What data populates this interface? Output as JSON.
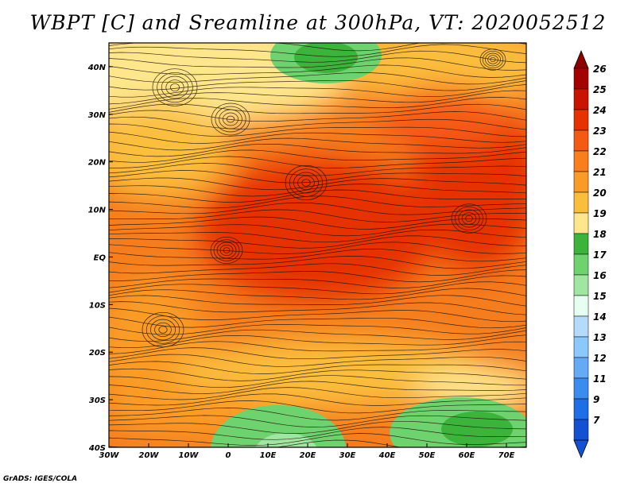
{
  "title": "WBPT [C] and Sreamline at 300hPa, VT: 2020052512",
  "credit": "GrADS: IGES/COLA",
  "map": {
    "lon_labels": [
      "30W",
      "20W",
      "10W",
      "0",
      "10E",
      "20E",
      "30E",
      "40E",
      "50E",
      "60E",
      "70E"
    ],
    "lat_labels": [
      "40N",
      "30N",
      "20N",
      "10N",
      "EQ",
      "10S",
      "20S",
      "30S",
      "40S"
    ],
    "lon_range": [
      -30,
      75
    ],
    "lat_range": [
      -40,
      45
    ]
  },
  "colorbar": {
    "labels": [
      "26",
      "25",
      "24",
      "23",
      "22",
      "21",
      "20",
      "19",
      "18",
      "17",
      "16",
      "15",
      "14",
      "13",
      "12",
      "11",
      "9",
      "7"
    ],
    "colors": [
      "#a50000",
      "#c81400",
      "#e63200",
      "#f55a14",
      "#fa7d1e",
      "#fa9b28",
      "#fbbe3c",
      "#fde68c",
      "#3cb43c",
      "#6ed26e",
      "#a0e6a0",
      "#e6fff0",
      "#b4dcfa",
      "#8cc8fa",
      "#64aaf5",
      "#3c8cf0",
      "#1e6ee6",
      "#1450d2"
    ],
    "top_arrow": "#8c0000",
    "bottom_arrow": "#1450d2"
  }
}
